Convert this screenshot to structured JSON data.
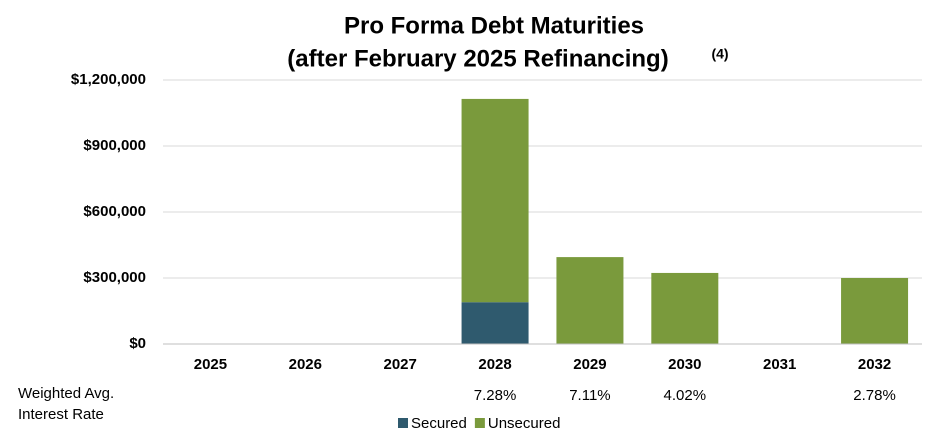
{
  "chart_data": {
    "type": "stacked_bar",
    "title": "Pro Forma Debt Maturities",
    "subtitle": "(after February 2025 Refinancing)",
    "title_note": "(4)",
    "categories": [
      "2025",
      "2026",
      "2027",
      "2028",
      "2029",
      "2030",
      "2031",
      "2032"
    ],
    "series": [
      {
        "name": "Secured",
        "color": "#2f5a6e",
        "values": [
          null,
          null,
          null,
          190000,
          null,
          null,
          null,
          null
        ]
      },
      {
        "name": "Unsecured",
        "color": "#7a9a3c",
        "values": [
          null,
          null,
          null,
          924000,
          395000,
          323000,
          null,
          300000
        ]
      }
    ],
    "ylim": [
      0,
      1200000
    ],
    "yticks": [
      {
        "value": 0,
        "label": "$0"
      },
      {
        "value": 300000,
        "label": "$300,000"
      },
      {
        "value": 600000,
        "label": "$600,000"
      },
      {
        "value": 900000,
        "label": "$900,000"
      },
      {
        "value": 1200000,
        "label": "$1,200,000"
      }
    ],
    "grid": true,
    "legend": "bottom",
    "rate_row": {
      "label_lines": [
        "Weighted Avg.",
        "Interest Rate"
      ],
      "values": [
        null,
        null,
        null,
        7.28,
        7.11,
        4.02,
        null,
        2.78
      ],
      "value_labels": [
        null,
        null,
        null,
        "7.28%",
        "7.11%",
        "4.02%",
        null,
        "2.78%"
      ]
    }
  }
}
